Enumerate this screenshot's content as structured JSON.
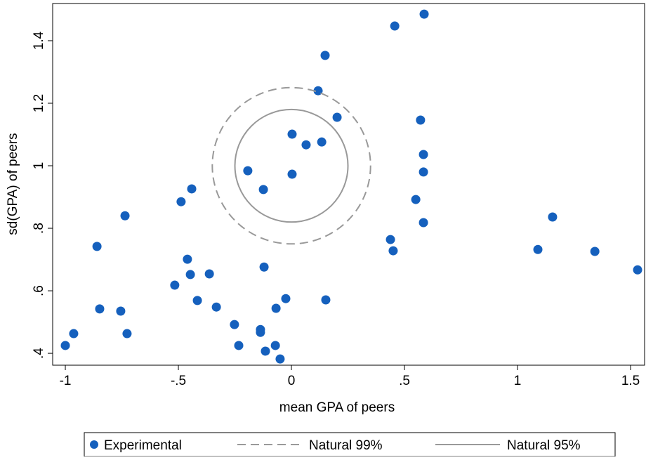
{
  "chart_data": {
    "type": "scatter",
    "x_label": "mean GPA of peers",
    "y_label": "sd(GPA) of peers",
    "xlim": [
      -1.056,
      1.562
    ],
    "ylim": [
      0.362,
      1.519
    ],
    "xticks": [
      -1,
      {
        "value": -0.5,
        "label": "-.5"
      },
      0,
      {
        "value": 0.5,
        "label": ".5"
      },
      1,
      1.5
    ],
    "yticks": [
      {
        "value": 0.4,
        "label": ".4"
      },
      {
        "value": 0.6,
        "label": ".6"
      },
      {
        "value": 0.8,
        "label": ".8"
      },
      1,
      1.2,
      1.4
    ],
    "legend": "bottom",
    "series": [
      {
        "name": "Experimental",
        "color": "#1560bd",
        "x": [
          -1.0,
          -0.963,
          -0.86,
          -0.848,
          -0.755,
          -0.736,
          -0.727,
          -0.516,
          -0.488,
          -0.46,
          -0.447,
          -0.441,
          -0.416,
          -0.363,
          -0.332,
          -0.252,
          -0.233,
          -0.193,
          -0.137,
          -0.137,
          -0.124,
          -0.121,
          -0.115,
          -0.068,
          -0.071,
          -0.05,
          -0.025,
          0.003,
          0.003,
          0.065,
          0.118,
          0.134,
          0.149,
          0.152,
          0.202,
          0.438,
          0.45,
          0.457,
          0.55,
          0.571,
          0.584,
          0.584,
          0.584,
          0.587,
          1.09,
          1.155,
          1.342,
          1.531
        ],
        "y": [
          0.425,
          0.463,
          0.742,
          0.542,
          0.535,
          0.84,
          0.463,
          0.618,
          0.885,
          0.701,
          0.652,
          0.926,
          0.569,
          0.654,
          0.548,
          0.492,
          0.425,
          0.984,
          0.476,
          0.467,
          0.924,
          0.676,
          0.407,
          0.544,
          0.425,
          0.382,
          0.575,
          1.101,
          0.973,
          1.067,
          1.24,
          1.076,
          1.353,
          0.571,
          1.155,
          0.764,
          0.728,
          1.447,
          0.892,
          1.146,
          1.036,
          0.98,
          0.818,
          1.485,
          0.732,
          0.836,
          0.726,
          0.667
        ]
      },
      {
        "name": "Natural 99%",
        "color": "#999999",
        "dashed": true,
        "center": [
          0,
          1
        ],
        "radius": [
          0.35,
          0.25
        ]
      },
      {
        "name": "Natural 95%",
        "color": "#999999",
        "dashed": false,
        "center": [
          0,
          1
        ],
        "radius": [
          0.25,
          0.18
        ]
      }
    ]
  }
}
